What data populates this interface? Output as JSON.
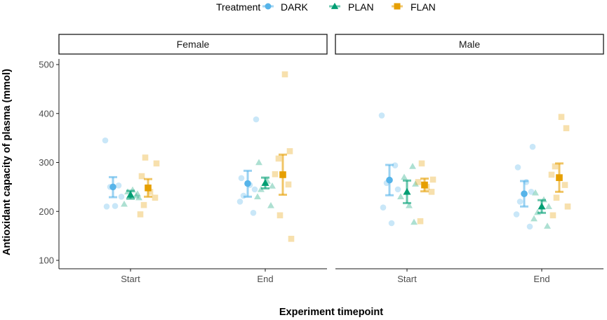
{
  "chart_data": {
    "type": "scatter",
    "subtype": "jittered points with mean and error bars, faceted",
    "xlabel": "Experiment timepoint",
    "ylabel": "Antioxidant capacity of plasma (mmol)",
    "ylim": [
      100,
      520
    ],
    "yticks": [
      100,
      200,
      300,
      400,
      500
    ],
    "categories": [
      "Start",
      "End"
    ],
    "grid": false,
    "legend": {
      "title": "Treatment",
      "position": "top",
      "entries": [
        {
          "name": "DARK",
          "color": "#56B4E9",
          "marker": "circle"
        },
        {
          "name": "PLAN",
          "color": "#009E73",
          "marker": "triangle"
        },
        {
          "name": "FLAN",
          "color": "#E69F00",
          "marker": "square"
        }
      ]
    },
    "facets": [
      {
        "label": "Female",
        "groups": [
          {
            "timepoint": "Start",
            "treatment": "DARK",
            "mean": 250,
            "lower": 229,
            "upper": 270,
            "points": [
              345,
              253,
              250,
              230,
              210,
              211
            ]
          },
          {
            "timepoint": "Start",
            "treatment": "PLAN",
            "mean": 234,
            "lower": 226,
            "upper": 242,
            "points": [
              232,
              240,
              228,
              215,
              244,
              236
            ]
          },
          {
            "timepoint": "Start",
            "treatment": "FLAN",
            "mean": 248,
            "lower": 230,
            "upper": 266,
            "points": [
              310,
              298,
              272,
              240,
              228,
              213,
              194
            ]
          },
          {
            "timepoint": "End",
            "treatment": "DARK",
            "mean": 257,
            "lower": 230,
            "upper": 283,
            "points": [
              388,
              268,
              254,
              245,
              232,
              220,
              197
            ]
          },
          {
            "timepoint": "End",
            "treatment": "PLAN",
            "mean": 258,
            "lower": 247,
            "upper": 269,
            "points": [
              300,
              262,
              252,
              245,
              230,
              212
            ]
          },
          {
            "timepoint": "End",
            "treatment": "FLAN",
            "mean": 275,
            "lower": 234,
            "upper": 316,
            "points": [
              480,
              323,
              308,
              276,
              255,
              192,
              144
            ]
          }
        ]
      },
      {
        "label": "Male",
        "groups": [
          {
            "timepoint": "Start",
            "treatment": "DARK",
            "mean": 264,
            "lower": 233,
            "upper": 295,
            "points": [
              396,
              294,
              258,
              245,
              208,
              176
            ]
          },
          {
            "timepoint": "Start",
            "treatment": "PLAN",
            "mean": 240,
            "lower": 217,
            "upper": 263,
            "points": [
              292,
              270,
              256,
              230,
              212,
              178
            ]
          },
          {
            "timepoint": "Start",
            "treatment": "FLAN",
            "mean": 254,
            "lower": 241,
            "upper": 267,
            "points": [
              298,
              265,
              260,
              250,
              240,
              180
            ]
          },
          {
            "timepoint": "End",
            "treatment": "DARK",
            "mean": 236,
            "lower": 210,
            "upper": 262,
            "points": [
              332,
              290,
              260,
              240,
              220,
              194,
              169
            ]
          },
          {
            "timepoint": "End",
            "treatment": "PLAN",
            "mean": 210,
            "lower": 197,
            "upper": 223,
            "points": [
              238,
              224,
              210,
              198,
              185,
              170
            ]
          },
          {
            "timepoint": "End",
            "treatment": "FLAN",
            "mean": 269,
            "lower": 240,
            "upper": 298,
            "points": [
              393,
              370,
              292,
              275,
              254,
              228,
              210,
              192
            ]
          }
        ]
      }
    ]
  }
}
